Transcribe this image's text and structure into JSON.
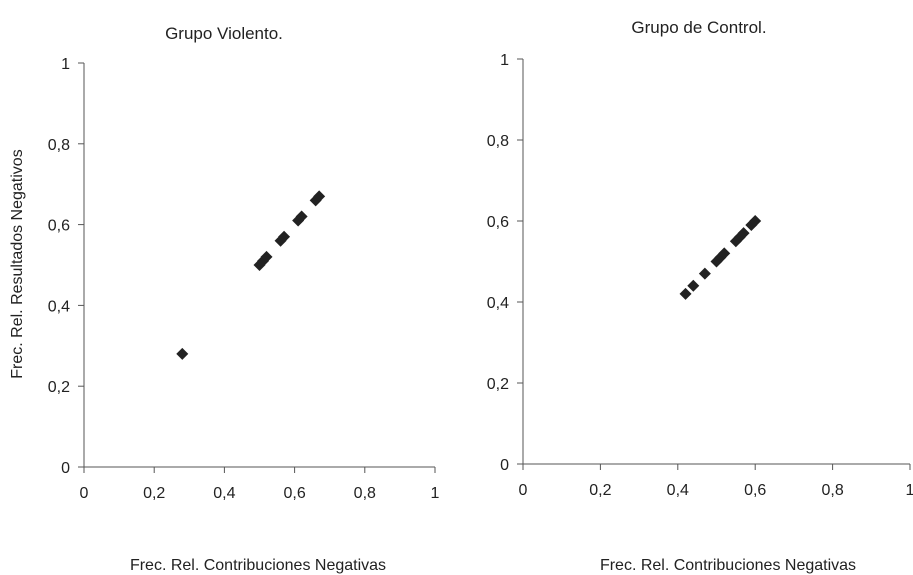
{
  "chart_data": [
    {
      "type": "scatter",
      "title": "Grupo Violento.",
      "xlabel": "Frec. Rel. Contribuciones Negativas",
      "ylabel": "Frec. Rel. Resultados Negativos",
      "xlim": [
        0,
        1
      ],
      "ylim": [
        0,
        1
      ],
      "x_ticks": [
        "0",
        "0,2",
        "0,4",
        "0,6",
        "0,8",
        "1"
      ],
      "y_ticks": [
        "0",
        "0,2",
        "0,4",
        "0,6",
        "0,8",
        "1"
      ],
      "grid": false,
      "marker": "diamond",
      "marker_color": "#222222",
      "points": [
        {
          "x": 0.28,
          "y": 0.28
        },
        {
          "x": 0.5,
          "y": 0.5
        },
        {
          "x": 0.51,
          "y": 0.51
        },
        {
          "x": 0.52,
          "y": 0.52
        },
        {
          "x": 0.56,
          "y": 0.56
        },
        {
          "x": 0.57,
          "y": 0.57
        },
        {
          "x": 0.61,
          "y": 0.61
        },
        {
          "x": 0.62,
          "y": 0.62
        },
        {
          "x": 0.66,
          "y": 0.66
        },
        {
          "x": 0.67,
          "y": 0.67
        }
      ]
    },
    {
      "type": "scatter",
      "title": "Grupo de Control.",
      "xlabel": "Frec. Rel. Contribuciones  Negativas",
      "ylabel": "",
      "xlim": [
        0,
        1
      ],
      "ylim": [
        0,
        1
      ],
      "x_ticks": [
        "0",
        "0,2",
        "0,4",
        "0,6",
        "0,8",
        "1"
      ],
      "y_ticks": [
        "0",
        "0,2",
        "0,4",
        "0,6",
        "0,8",
        "1"
      ],
      "grid": false,
      "marker": "diamond",
      "marker_color": "#222222",
      "points": [
        {
          "x": 0.42,
          "y": 0.42
        },
        {
          "x": 0.44,
          "y": 0.44
        },
        {
          "x": 0.47,
          "y": 0.47
        },
        {
          "x": 0.5,
          "y": 0.5
        },
        {
          "x": 0.51,
          "y": 0.51
        },
        {
          "x": 0.52,
          "y": 0.52
        },
        {
          "x": 0.55,
          "y": 0.55
        },
        {
          "x": 0.56,
          "y": 0.56
        },
        {
          "x": 0.57,
          "y": 0.57
        },
        {
          "x": 0.59,
          "y": 0.59
        },
        {
          "x": 0.6,
          "y": 0.6
        }
      ]
    }
  ]
}
